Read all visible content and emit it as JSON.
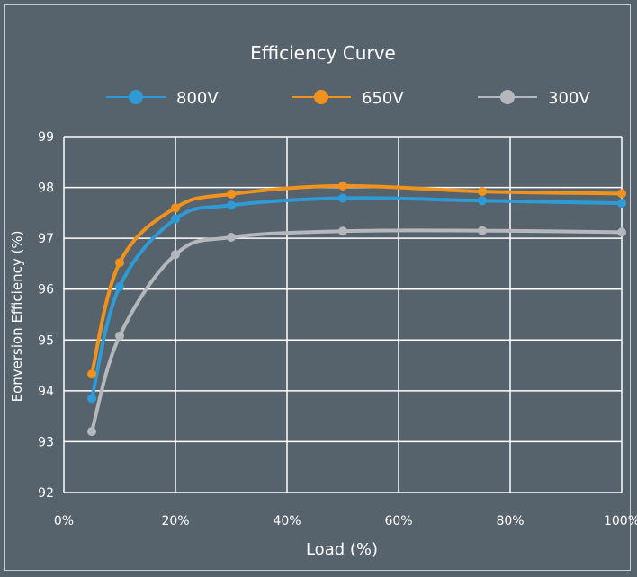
{
  "chart_data": {
    "type": "line",
    "title": "Efficiency Curve",
    "xlabel": "Load (%)",
    "ylabel": "Eonversion Efficiency (%)",
    "x": [
      5,
      10,
      20,
      30,
      50,
      75,
      100
    ],
    "xlim": [
      0,
      100
    ],
    "ylim": [
      92,
      99
    ],
    "x_ticks": [
      "0%",
      "20%",
      "40%",
      "60%",
      "80%",
      "100%"
    ],
    "y_ticks": [
      "92",
      "93",
      "94",
      "95",
      "96",
      "97",
      "98",
      "99"
    ],
    "grid": true,
    "legend_position": "top",
    "series": [
      {
        "name": "800V",
        "color": "#2e9bd6",
        "values": [
          93.85,
          96.05,
          97.38,
          97.65,
          97.79,
          97.74,
          97.69
        ]
      },
      {
        "name": "650V",
        "color": "#f0921e",
        "values": [
          94.33,
          96.52,
          97.6,
          97.87,
          98.03,
          97.92,
          97.88
        ]
      },
      {
        "name": "300V",
        "color": "#b4b8bc",
        "values": [
          93.2,
          95.08,
          96.68,
          97.02,
          97.14,
          97.15,
          97.12
        ]
      }
    ]
  }
}
